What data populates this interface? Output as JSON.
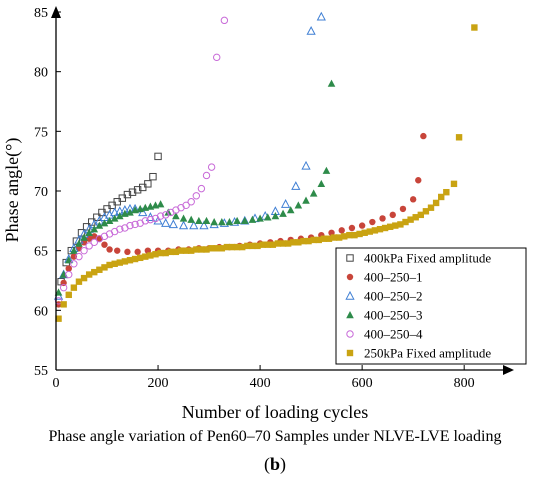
{
  "chart_data": {
    "type": "scatter",
    "ylabel": "Phase angle(°)",
    "xlabel": "Number of loading cycles",
    "caption": "Phase angle variation of Pen60–70 Samples under NLVE-LVE loading",
    "panel_open": "(",
    "panel_letter": "b",
    "panel_close": ")",
    "xlim": [
      0,
      880
    ],
    "ylim": [
      55,
      85
    ],
    "xticks": [
      0,
      200,
      400,
      600,
      800
    ],
    "yticks": [
      55,
      60,
      65,
      70,
      75,
      80,
      85
    ],
    "legend_position": "bottom-right",
    "series": [
      {
        "name": "400kPa Fixed amplitude",
        "marker": "square-open",
        "color": "#444444",
        "x": [
          10,
          20,
          30,
          40,
          50,
          60,
          70,
          80,
          90,
          100,
          110,
          120,
          130,
          140,
          150,
          160,
          170,
          180,
          190,
          200
        ],
        "y": [
          62.4,
          64.0,
          65.0,
          65.8,
          66.5,
          67.0,
          67.4,
          67.8,
          68.2,
          68.5,
          68.8,
          69.1,
          69.4,
          69.7,
          69.9,
          70.1,
          70.3,
          70.6,
          71.2,
          72.9
        ]
      },
      {
        "name": "400–250–1",
        "marker": "circle-filled",
        "color": "#c8453a",
        "x": [
          5,
          15,
          25,
          35,
          45,
          55,
          65,
          75,
          85,
          95,
          105,
          120,
          140,
          160,
          180,
          200,
          220,
          240,
          260,
          280,
          300,
          320,
          340,
          360,
          380,
          400,
          420,
          440,
          460,
          480,
          500,
          520,
          540,
          560,
          580,
          600,
          620,
          640,
          660,
          680,
          700,
          710,
          720
        ],
        "y": [
          60.5,
          62.3,
          63.5,
          64.5,
          65.2,
          65.7,
          66.0,
          66.2,
          66.0,
          65.5,
          65.1,
          65.0,
          64.9,
          64.9,
          65.0,
          65.0,
          65.0,
          65.1,
          65.1,
          65.2,
          65.2,
          65.3,
          65.3,
          65.4,
          65.5,
          65.6,
          65.7,
          65.8,
          65.9,
          66.0,
          66.1,
          66.3,
          66.5,
          66.7,
          66.9,
          67.1,
          67.4,
          67.7,
          68.0,
          68.5,
          69.3,
          70.9,
          74.6
        ]
      },
      {
        "name": "400–250–2",
        "marker": "triangle-open",
        "color": "#3f7fd4",
        "x": [
          5,
          15,
          25,
          35,
          45,
          55,
          65,
          75,
          85,
          95,
          105,
          115,
          125,
          135,
          145,
          155,
          170,
          185,
          200,
          215,
          230,
          250,
          270,
          290,
          310,
          330,
          350,
          370,
          390,
          410,
          430,
          450,
          470,
          490,
          500,
          520
        ],
        "y": [
          61.2,
          63.0,
          64.3,
          65.2,
          65.9,
          66.4,
          66.8,
          67.2,
          67.5,
          67.8,
          68.0,
          68.2,
          68.3,
          68.4,
          68.5,
          68.5,
          68.2,
          67.8,
          67.5,
          67.3,
          67.2,
          67.1,
          67.1,
          67.1,
          67.2,
          67.3,
          67.4,
          67.5,
          67.7,
          67.9,
          68.3,
          68.9,
          70.4,
          72.1,
          83.4,
          84.6
        ]
      },
      {
        "name": "400–250–3",
        "marker": "triangle-filled",
        "color": "#2e8b4a",
        "x": [
          5,
          15,
          25,
          35,
          45,
          55,
          65,
          75,
          85,
          95,
          105,
          115,
          125,
          135,
          145,
          155,
          165,
          175,
          185,
          195,
          205,
          220,
          235,
          250,
          265,
          280,
          295,
          310,
          325,
          340,
          355,
          370,
          385,
          400,
          415,
          430,
          445,
          460,
          475,
          490,
          505,
          520,
          530,
          540
        ],
        "y": [
          61.5,
          63.0,
          64.2,
          65.0,
          65.6,
          66.1,
          66.5,
          66.8,
          67.1,
          67.3,
          67.5,
          67.7,
          67.9,
          68.1,
          68.2,
          68.4,
          68.5,
          68.6,
          68.7,
          68.8,
          68.9,
          68.2,
          67.9,
          67.7,
          67.6,
          67.5,
          67.5,
          67.4,
          67.4,
          67.4,
          67.5,
          67.5,
          67.6,
          67.7,
          67.8,
          67.9,
          68.1,
          68.4,
          68.8,
          69.2,
          69.8,
          70.6,
          71.7,
          79.0
        ]
      },
      {
        "name": "400–250–4",
        "marker": "circle-open",
        "color": "#c86ad8",
        "x": [
          5,
          15,
          25,
          35,
          45,
          55,
          65,
          75,
          85,
          95,
          105,
          115,
          125,
          135,
          145,
          155,
          165,
          175,
          185,
          195,
          205,
          215,
          225,
          235,
          245,
          255,
          265,
          275,
          285,
          295,
          305,
          315,
          330
        ],
        "y": [
          60.8,
          61.9,
          63.0,
          63.9,
          64.5,
          65.0,
          65.4,
          65.7,
          66.0,
          66.2,
          66.4,
          66.6,
          66.8,
          66.9,
          67.1,
          67.2,
          67.3,
          67.5,
          67.6,
          67.7,
          67.9,
          68.0,
          68.2,
          68.4,
          68.6,
          68.8,
          69.1,
          69.6,
          70.2,
          71.3,
          72.0,
          81.2,
          84.3
        ]
      },
      {
        "name": "250kPa Fixed amplitude",
        "marker": "square-filled",
        "color": "#c9a312",
        "x": [
          5,
          15,
          25,
          35,
          45,
          55,
          65,
          75,
          85,
          95,
          105,
          115,
          125,
          135,
          145,
          155,
          165,
          175,
          185,
          195,
          205,
          215,
          225,
          235,
          245,
          255,
          265,
          275,
          285,
          295,
          305,
          315,
          325,
          335,
          345,
          355,
          365,
          375,
          385,
          395,
          405,
          415,
          425,
          435,
          445,
          455,
          465,
          475,
          485,
          495,
          505,
          515,
          525,
          535,
          545,
          555,
          565,
          575,
          585,
          595,
          605,
          615,
          625,
          635,
          645,
          655,
          665,
          675,
          685,
          695,
          705,
          715,
          725,
          735,
          745,
          755,
          765,
          780,
          790,
          820
        ],
        "y": [
          59.3,
          60.5,
          61.3,
          61.9,
          62.4,
          62.7,
          63.0,
          63.2,
          63.4,
          63.6,
          63.8,
          63.9,
          64.0,
          64.1,
          64.2,
          64.3,
          64.4,
          64.5,
          64.6,
          64.7,
          64.8,
          64.8,
          64.9,
          64.9,
          65.0,
          65.0,
          65.0,
          65.1,
          65.1,
          65.1,
          65.2,
          65.2,
          65.2,
          65.3,
          65.3,
          65.3,
          65.3,
          65.4,
          65.4,
          65.4,
          65.5,
          65.5,
          65.5,
          65.6,
          65.6,
          65.6,
          65.7,
          65.7,
          65.8,
          65.8,
          65.9,
          65.9,
          66.0,
          66.0,
          66.1,
          66.1,
          66.2,
          66.3,
          66.3,
          66.4,
          66.5,
          66.6,
          66.7,
          66.8,
          66.9,
          67.0,
          67.1,
          67.2,
          67.4,
          67.6,
          67.8,
          68.0,
          68.3,
          68.6,
          69.0,
          69.5,
          69.9,
          70.6,
          74.5,
          83.7
        ]
      }
    ]
  }
}
